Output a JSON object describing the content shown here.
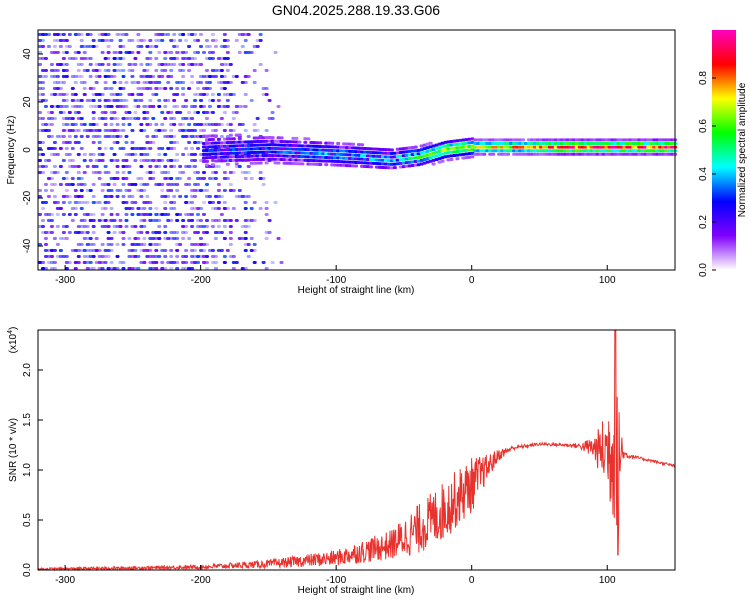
{
  "title": "GN04.2025.288.19.33.G06",
  "colors": {
    "snr_line": "#e8322d",
    "spectrogram_noise": "#8a2be2"
  },
  "chart_data": [
    {
      "type": "heatmap",
      "name": "spectrogram",
      "xlabel": "Height of straight line (km)",
      "ylabel": "Frequency (Hz)",
      "xlim": [
        -320,
        150
      ],
      "ylim": [
        -50,
        50
      ],
      "xticks": [
        -300,
        -200,
        -100,
        0,
        100
      ],
      "yticks": [
        -40,
        -20,
        0,
        20,
        40
      ],
      "grid": false,
      "colorbar": {
        "label": "Normalized spectral amplitude",
        "range": [
          0.0,
          1.0
        ],
        "ticks": [
          "0.0",
          "0.2",
          "0.4",
          "0.6",
          "0.8"
        ],
        "colormap": [
          "#ffffff",
          "#8000ff",
          "#0000ff",
          "#00ffff",
          "#00ff00",
          "#ffff00",
          "#ff0000",
          "#ff00c0"
        ]
      },
      "ridge": [
        {
          "height": -200,
          "freq": 0,
          "amp": 0.3
        },
        {
          "height": -150,
          "freq": 0,
          "amp": 0.35
        },
        {
          "height": -100,
          "freq": -2,
          "amp": 0.4
        },
        {
          "height": -60,
          "freq": -4,
          "amp": 0.45
        },
        {
          "height": -40,
          "freq": -3,
          "amp": 0.55
        },
        {
          "height": -20,
          "freq": 0,
          "amp": 0.65
        },
        {
          "height": 0,
          "freq": 1,
          "amp": 0.72
        },
        {
          "height": 20,
          "freq": 1,
          "amp": 0.75
        },
        {
          "height": 50,
          "freq": 1,
          "amp": 0.8
        },
        {
          "height": 70,
          "freq": 1,
          "amp": 0.95
        },
        {
          "height": 100,
          "freq": 1,
          "amp": 0.9
        },
        {
          "height": 150,
          "freq": 1,
          "amp": 0.95
        }
      ]
    },
    {
      "type": "line",
      "name": "snr",
      "xlabel": "Height of straight line (km)",
      "ylabel": "SNR (10 * v/v)",
      "y_multiplier": "(x10",
      "y_multiplier_exp": "4",
      "xlim": [
        -320,
        150
      ],
      "ylim": [
        0,
        2.4
      ],
      "xticks": [
        -300,
        -200,
        -100,
        0,
        100
      ],
      "yticks": [
        "0.0",
        "0.5",
        "1.0",
        "1.5",
        "2.0"
      ],
      "grid": false,
      "envelope": {
        "x": [
          -320,
          -250,
          -200,
          -150,
          -100,
          -60,
          -40,
          -20,
          0,
          10,
          20,
          30,
          50,
          70,
          80,
          90,
          95,
          100,
          104,
          108,
          112,
          120,
          150
        ],
        "y": [
          0.01,
          0.02,
          0.03,
          0.06,
          0.12,
          0.25,
          0.4,
          0.6,
          0.85,
          1.0,
          1.15,
          1.22,
          1.26,
          1.25,
          1.24,
          1.22,
          1.2,
          1.2,
          1.2,
          1.2,
          1.16,
          1.13,
          1.04
        ],
        "noise": [
          0.01,
          0.015,
          0.02,
          0.04,
          0.08,
          0.15,
          0.25,
          0.3,
          0.28,
          0.15,
          0.06,
          0.02,
          0.015,
          0.015,
          0.03,
          0.12,
          0.25,
          0.45,
          0.7,
          0.9,
          0.05,
          0.015,
          0.015
        ]
      },
      "peak": {
        "height": 106,
        "value": 2.4
      },
      "trough": {
        "height": 108,
        "value": 0.15
      }
    }
  ]
}
